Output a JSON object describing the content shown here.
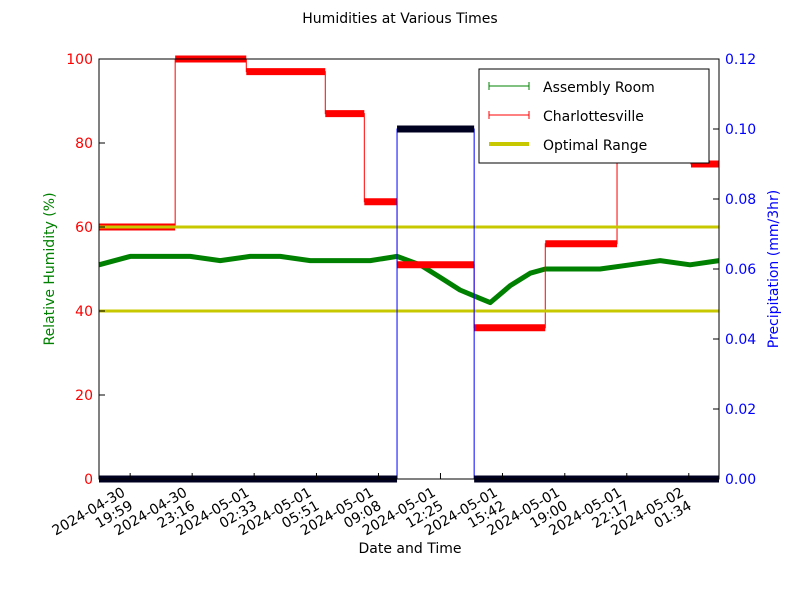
{
  "chart_data": {
    "type": "line",
    "title": "Humidities at Various Times",
    "xlabel": "Date and Time",
    "ylabel": "Relative Humidity (%)",
    "y2label": "Precipitation (mm/3hr)",
    "ylabel_color": "#008000",
    "y2label_color": "#0000ff",
    "ytick_color": "#ff0000",
    "xlim": [
      "2024-04-30 18:20",
      "2024-05-02 03:10"
    ],
    "ylim": [
      0,
      100
    ],
    "y2lim": [
      0,
      0.12
    ],
    "xticks": [
      {
        "value": "2024-04-30 19:59",
        "label": "2024-04-30\n19:59"
      },
      {
        "value": "2024-04-30 23:16",
        "label": "2024-04-30\n23:16"
      },
      {
        "value": "2024-05-01 02:33",
        "label": "2024-05-01\n02:33"
      },
      {
        "value": "2024-05-01 05:51",
        "label": "2024-05-01\n05:51"
      },
      {
        "value": "2024-05-01 09:08",
        "label": "2024-05-01\n09:08"
      },
      {
        "value": "2024-05-01 12:25",
        "label": "2024-05-01\n12:25"
      },
      {
        "value": "2024-05-01 15:42",
        "label": "2024-05-01\n15:42"
      },
      {
        "value": "2024-05-01 19:00",
        "label": "2024-05-01\n19:00"
      },
      {
        "value": "2024-05-01 22:17",
        "label": "2024-05-01\n22:17"
      },
      {
        "value": "2024-05-02 01:34",
        "label": "2024-05-02\n01:34"
      }
    ],
    "yticks": [
      0,
      20,
      40,
      60,
      80,
      100
    ],
    "y2ticks": [
      {
        "value": 0,
        "label": "0.00"
      },
      {
        "value": 0.02,
        "label": "0.02"
      },
      {
        "value": 0.04,
        "label": "0.04"
      },
      {
        "value": 0.06,
        "label": "0.06"
      },
      {
        "value": 0.08,
        "label": "0.08"
      },
      {
        "value": 0.1,
        "label": "0.10"
      },
      {
        "value": 0.12,
        "label": "0.12"
      }
    ],
    "legend": "upper right",
    "series": [
      {
        "name": "Assembly Room",
        "color": "#008000",
        "drawstyle": "line",
        "x": [
          "2024-04-30 18:20",
          "2024-04-30 19:59",
          "2024-04-30 21:34",
          "2024-04-30 23:10",
          "2024-05-01 00:45",
          "2024-05-01 02:20",
          "2024-05-01 03:56",
          "2024-05-01 05:31",
          "2024-05-01 07:06",
          "2024-05-01 08:42",
          "2024-05-01 10:07",
          "2024-05-01 11:20",
          "2024-05-01 12:24",
          "2024-05-01 13:27",
          "2024-05-01 14:31",
          "2024-05-01 15:03",
          "2024-05-01 16:06",
          "2024-05-01 17:10",
          "2024-05-01 17:58",
          "2024-05-01 19:17",
          "2024-05-01 20:52",
          "2024-05-01 22:28",
          "2024-05-02 00:03",
          "2024-05-02 01:38",
          "2024-05-02 03:10"
        ],
        "values": [
          51,
          53,
          53,
          53,
          52,
          53,
          53,
          52,
          52,
          52,
          53,
          51,
          48,
          45,
          43,
          42,
          46,
          49,
          50,
          50,
          50,
          51,
          52,
          51,
          52
        ]
      },
      {
        "name": "Charlottesville",
        "color": "#ff0000",
        "drawstyle": "steps-post",
        "x": [
          "2024-04-30 18:20",
          "2024-04-30 22:22",
          "2024-05-01 02:08",
          "2024-05-01 06:19",
          "2024-05-01 08:23",
          "2024-05-01 10:07",
          "2024-05-01 14:12",
          "2024-05-01 17:58",
          "2024-05-01 21:46",
          "2024-05-02 01:41",
          "2024-05-02 03:10"
        ],
        "values": [
          60,
          100,
          97,
          87,
          66,
          51,
          36,
          56,
          90,
          75,
          75
        ]
      },
      {
        "name": "Optimal Range",
        "color": "#c8c800",
        "drawstyle": "hlines",
        "values": [
          40,
          60
        ]
      },
      {
        "color": "#0000ff",
        "marker_color": "#000020",
        "drawstyle": "steps-post",
        "axis": "y2",
        "x": [
          "2024-04-30 18:20",
          "2024-05-01 10:07",
          "2024-05-01 14:12",
          "2024-05-02 03:10"
        ],
        "values": [
          0,
          0.1,
          0,
          0
        ]
      }
    ]
  }
}
